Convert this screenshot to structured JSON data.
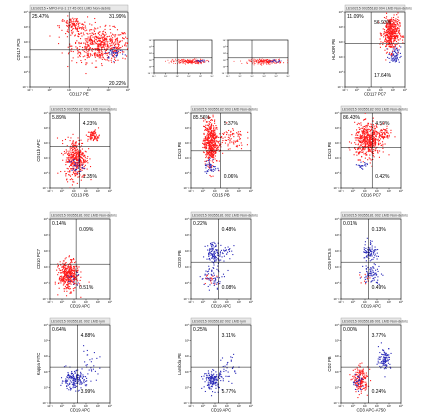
{
  "figure": {
    "colors": {
      "red": "#ff1a1a",
      "blue": "#2a2ab8",
      "frame": "#000000",
      "header_bg": "#e8e8e8",
      "header_text": "#444444"
    }
  },
  "chart_data": [
    {
      "type": "scatter",
      "header": "LES0215 • MPO-FU-1 17 45 001 LMD  Non-debris",
      "xlabel": "CD117 PE",
      "ylabel": "CD117 PC5",
      "xlim": [
        0.1,
        10000
      ],
      "ylim": [
        0.1,
        10000
      ],
      "log": true,
      "quadrant_labels": [
        "25.47%",
        "31.99%",
        "",
        "20.22%"
      ],
      "cut": [
        10,
        30
      ],
      "clusters": [
        {
          "color": "red",
          "cx": 2.6,
          "cy": 1.8,
          "sx": 0.75,
          "sy": 0.55,
          "n": 520
        },
        {
          "color": "red",
          "cx": 1.2,
          "cy": 3.1,
          "sx": 0.35,
          "sy": 0.3,
          "n": 120
        },
        {
          "color": "blue",
          "cx": 3.3,
          "cy": 1.3,
          "sx": 0.25,
          "sy": 0.2,
          "n": 40
        }
      ]
    },
    {
      "type": "scatter",
      "header": "",
      "xlabel": "",
      "ylabel": "",
      "xlim": [
        0.1,
        10000
      ],
      "ylim": [
        0.1,
        10000
      ],
      "log": true,
      "quadrant_labels": [
        "",
        "",
        "",
        ""
      ],
      "cut": [
        10,
        20
      ],
      "clusters": [
        {
          "color": "red",
          "cx": 2.0,
          "cy": 0.8,
          "sx": 0.7,
          "sy": 0.18,
          "n": 200
        },
        {
          "color": "blue",
          "cx": 3.0,
          "cy": 0.85,
          "sx": 0.3,
          "sy": 0.1,
          "n": 25
        }
      ]
    },
    {
      "type": "scatter",
      "header": "",
      "xlabel": "",
      "ylabel": "",
      "xlim": [
        0.1,
        10000
      ],
      "ylim": [
        0.1,
        10000
      ],
      "log": true,
      "quadrant_labels": [
        "",
        "",
        "",
        ""
      ],
      "cut": [
        10,
        20
      ],
      "clusters": [
        {
          "color": "red",
          "cx": 2.1,
          "cy": 0.8,
          "sx": 0.7,
          "sy": 0.18,
          "n": 200
        },
        {
          "color": "blue",
          "cx": 2.9,
          "cy": 0.85,
          "sx": 0.3,
          "sy": 0.1,
          "n": 25
        }
      ]
    },
    {
      "type": "scatter",
      "header": "LES0215 00355183 004 LMD  Non-debris",
      "xlabel": "CD117 PC7",
      "ylabel": "HLADR PB",
      "xlim": [
        0.1,
        10000
      ],
      "ylim": [
        0.1,
        10000
      ],
      "log": true,
      "quadrant_labels": [
        "11.09%",
        "56.93%",
        "",
        "17.64%"
      ],
      "cut": [
        15,
        80
      ],
      "clusters": [
        {
          "color": "red",
          "cx": 2.8,
          "cy": 2.6,
          "sx": 0.35,
          "sy": 0.6,
          "n": 420
        },
        {
          "color": "blue",
          "cx": 3.1,
          "cy": 1.1,
          "sx": 0.25,
          "sy": 0.3,
          "n": 60
        }
      ]
    },
    {
      "type": "scatter",
      "header": "LES0215 00355182 003 LMD  Non-debris",
      "xlabel": "CD13 PB",
      "ylabel": "CD11b APC",
      "xlim": [
        0.1,
        10000
      ],
      "ylim": [
        0.1,
        10000
      ],
      "log": true,
      "quadrant_labels": [
        "5.89%",
        "4.23%",
        "",
        "1.35%"
      ],
      "cut": [
        30,
        60
      ],
      "clusters": [
        {
          "color": "red",
          "cx": 1.1,
          "cy": 1.0,
          "sx": 0.45,
          "sy": 0.65,
          "n": 380
        },
        {
          "color": "red",
          "cx": 2.6,
          "cy": 2.5,
          "sx": 0.25,
          "sy": 0.2,
          "n": 70
        },
        {
          "color": "blue",
          "cx": 1.1,
          "cy": 0.5,
          "sx": 0.3,
          "sy": 0.25,
          "n": 30
        }
      ]
    },
    {
      "type": "scatter",
      "header": "LES0215 00355182 003 LMD  Non-debris",
      "xlabel": "CD15 PB",
      "ylabel": "CD13 PE",
      "xlim": [
        0.1,
        10000
      ],
      "ylim": [
        0.1,
        10000
      ],
      "log": true,
      "quadrant_labels": [
        "85.56%",
        "5.37%",
        "",
        "0.06%"
      ],
      "cut": [
        30,
        30
      ],
      "clusters": [
        {
          "color": "red",
          "cx": 0.6,
          "cy": 2.1,
          "sx": 0.3,
          "sy": 0.75,
          "n": 460
        },
        {
          "color": "red",
          "cx": 2.2,
          "cy": 2.4,
          "sx": 0.6,
          "sy": 0.4,
          "n": 80
        },
        {
          "color": "blue",
          "cx": 0.6,
          "cy": 0.4,
          "sx": 0.25,
          "sy": 0.3,
          "n": 40
        }
      ]
    },
    {
      "type": "scatter",
      "header": "LES0215 00355182 003 LMD  Non-debris",
      "xlabel": "CD16 PC7",
      "ylabel": "CD13 PE",
      "xlim": [
        0.1,
        10000
      ],
      "ylim": [
        0.1,
        10000
      ],
      "log": true,
      "quadrant_labels": [
        "86.43%",
        "4.50%",
        "",
        "0.42%"
      ],
      "cut": [
        40,
        50
      ],
      "clusters": [
        {
          "color": "red",
          "cx": 1.2,
          "cy": 2.2,
          "sx": 0.55,
          "sy": 0.55,
          "n": 480
        },
        {
          "color": "red",
          "cx": 2.5,
          "cy": 2.6,
          "sx": 0.35,
          "sy": 0.2,
          "n": 60
        },
        {
          "color": "blue",
          "cx": 0.7,
          "cy": 0.5,
          "sx": 0.2,
          "sy": 0.2,
          "n": 20
        }
      ]
    },
    {
      "type": "scatter",
      "header": "LES0215 00355181 002 LMD  Non-debris",
      "xlabel": "CD19 APC",
      "ylabel": "CD10 PC7",
      "xlim": [
        0.1,
        10000
      ],
      "ylim": [
        0.1,
        10000
      ],
      "log": true,
      "quadrant_labels": [
        "0.14%",
        "0.09%",
        "",
        "0.51%"
      ],
      "cut": [
        15,
        15
      ],
      "clusters": [
        {
          "color": "red",
          "cx": 0.5,
          "cy": 0.5,
          "sx": 0.4,
          "sy": 0.45,
          "n": 380
        },
        {
          "color": "blue",
          "cx": 0.9,
          "cy": 0.3,
          "sx": 0.3,
          "sy": 0.2,
          "n": 15
        }
      ]
    },
    {
      "type": "scatter",
      "header": "LES0215 00355181 002 LMD  Non-debris",
      "xlabel": "CD19 APC",
      "ylabel": "CD20 PB",
      "xlim": [
        0.1,
        10000
      ],
      "ylim": [
        0.1,
        10000
      ],
      "log": true,
      "quadrant_labels": [
        "0.22%",
        "0.48%",
        "",
        "0.08%"
      ],
      "cut": [
        20,
        20
      ],
      "clusters": [
        {
          "color": "blue",
          "cx": 0.9,
          "cy": 1.9,
          "sx": 0.35,
          "sy": 0.35,
          "n": 110
        },
        {
          "color": "blue",
          "cx": 2.0,
          "cy": 2.0,
          "sx": 0.3,
          "sy": 0.2,
          "n": 20
        },
        {
          "color": "blue",
          "cx": 0.8,
          "cy": 0.4,
          "sx": 0.5,
          "sy": 0.3,
          "n": 60
        },
        {
          "color": "red",
          "cx": 0.6,
          "cy": 0.3,
          "sx": 0.3,
          "sy": 0.2,
          "n": 15
        }
      ]
    },
    {
      "type": "scatter",
      "header": "LES0215 00355181 002 LMD  Non-debris",
      "xlabel": "CD19 APC",
      "ylabel": "CD5 PC5.5",
      "xlim": [
        0.1,
        10000
      ],
      "ylim": [
        0.1,
        10000
      ],
      "log": true,
      "quadrant_labels": [
        "0.01%",
        "0.13%",
        "",
        "0.49%"
      ],
      "cut": [
        20,
        20
      ],
      "clusters": [
        {
          "color": "blue",
          "cx": 1.4,
          "cy": 2.0,
          "sx": 0.3,
          "sy": 0.35,
          "n": 80
        },
        {
          "color": "blue",
          "cx": 1.5,
          "cy": 0.6,
          "sx": 0.4,
          "sy": 0.3,
          "n": 70
        },
        {
          "color": "red",
          "cx": 0.8,
          "cy": 0.3,
          "sx": 0.3,
          "sy": 0.2,
          "n": 10
        }
      ]
    },
    {
      "type": "scatter",
      "header": "LES0215 00355181 002 LMD  lym",
      "xlabel": "CD19 APC",
      "ylabel": "Kappa FITC",
      "xlim": [
        0.1,
        10000
      ],
      "ylim": [
        0.1,
        10000
      ],
      "log": true,
      "quadrant_labels": [
        "0.64%",
        "4.88%",
        "",
        "3.99%"
      ],
      "cut": [
        20,
        20
      ],
      "clusters": [
        {
          "color": "blue",
          "cx": 0.9,
          "cy": 0.5,
          "sx": 0.5,
          "sy": 0.3,
          "n": 170
        },
        {
          "color": "blue",
          "cx": 2.2,
          "cy": 1.4,
          "sx": 0.45,
          "sy": 0.5,
          "n": 30
        }
      ]
    },
    {
      "type": "scatter",
      "header": "LES0215 00355182 002 LMD  lym",
      "xlabel": "CD19 APC",
      "ylabel": "Lambda PE",
      "xlim": [
        0.1,
        10000
      ],
      "ylim": [
        0.1,
        10000
      ],
      "log": true,
      "quadrant_labels": [
        "0.25%",
        "3.11%",
        "",
        "5.77%"
      ],
      "cut": [
        20,
        20
      ],
      "clusters": [
        {
          "color": "blue",
          "cx": 0.8,
          "cy": 0.5,
          "sx": 0.4,
          "sy": 0.3,
          "n": 150
        },
        {
          "color": "blue",
          "cx": 2.2,
          "cy": 1.3,
          "sx": 0.45,
          "sy": 0.5,
          "n": 30
        }
      ]
    },
    {
      "type": "scatter",
      "header": "LES0215 00355186 001 LMD  Non-debris",
      "xlabel": "CD3 APC-A750",
      "ylabel": "CD2 PB",
      "xlim": [
        0.1,
        10000
      ],
      "ylim": [
        0.1,
        10000
      ],
      "log": true,
      "quadrant_labels": [
        "0.00%",
        "3.77%",
        "",
        "0.24%"
      ],
      "cut": [
        20,
        20
      ],
      "clusters": [
        {
          "color": "blue",
          "cx": 2.6,
          "cy": 1.9,
          "sx": 0.25,
          "sy": 0.35,
          "n": 100
        },
        {
          "color": "red",
          "cx": 0.6,
          "cy": 0.5,
          "sx": 0.3,
          "sy": 0.4,
          "n": 170
        },
        {
          "color": "blue",
          "cx": 0.4,
          "cy": 0.4,
          "sx": 0.25,
          "sy": 0.25,
          "n": 30
        }
      ]
    }
  ]
}
